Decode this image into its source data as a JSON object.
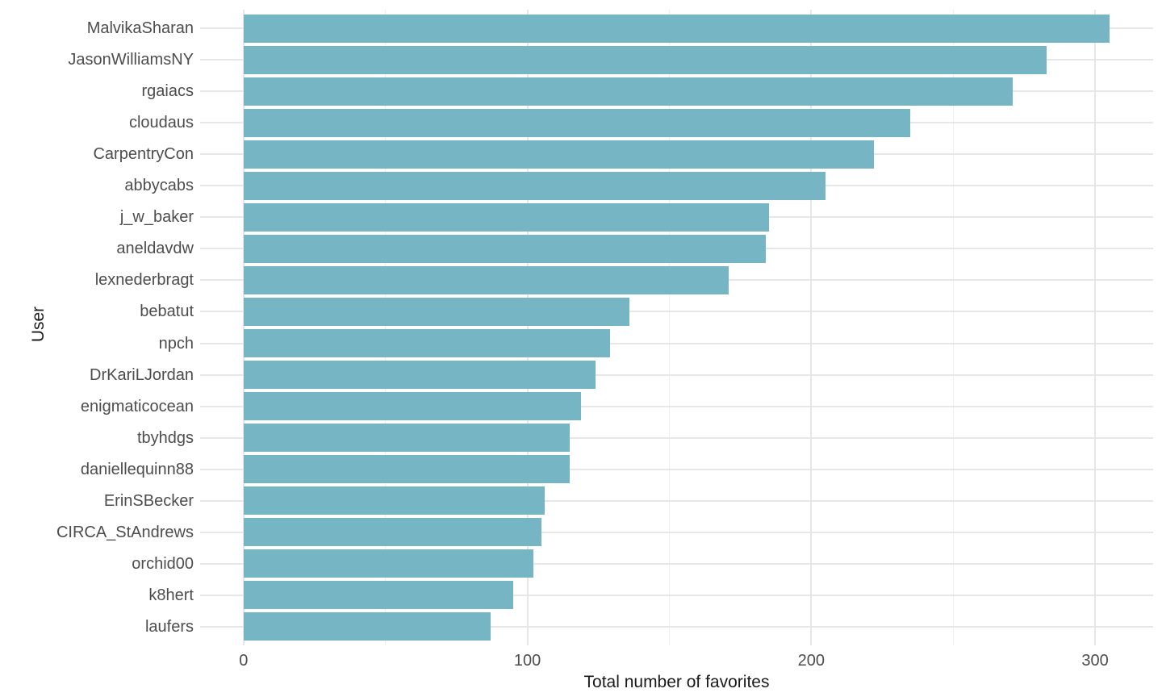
{
  "chart_data": {
    "type": "bar",
    "orientation": "horizontal",
    "title": "",
    "xlabel": "Total number of favorites",
    "ylabel": "User",
    "categories": [
      "MalvikaSharan",
      "JasonWilliamsNY",
      "rgaiacs",
      "cloudaus",
      "CarpentryCon",
      "abbycabs",
      "j_w_baker",
      "aneldavdw",
      "lexnederbragt",
      "bebatut",
      "npch",
      "DrKariLJordan",
      "enigmaticocean",
      "tbyhdgs",
      "daniellequinn88",
      "ErinSBecker",
      "CIRCA_StAndrews",
      "orchid00",
      "k8hert",
      "laufers"
    ],
    "values": [
      305,
      283,
      271,
      235,
      222,
      205,
      185,
      184,
      171,
      136,
      129,
      124,
      119,
      115,
      115,
      106,
      105,
      102,
      95,
      87
    ],
    "xlim": [
      0,
      320
    ],
    "x_major_ticks": [
      0,
      100,
      200,
      300
    ],
    "x_tick_labels": [
      "0",
      "100",
      "200",
      "300"
    ],
    "x_minor_ticks": [
      50,
      150,
      250
    ],
    "grid": true,
    "legend": false,
    "colors": {
      "bar": "#76b5c3",
      "grid_major": "#e7e7e7",
      "grid_minor": "#eeeeee",
      "tick_text": "#4d4d4d",
      "axis_title_text": "#1a1a1a",
      "background": "#ffffff"
    }
  }
}
